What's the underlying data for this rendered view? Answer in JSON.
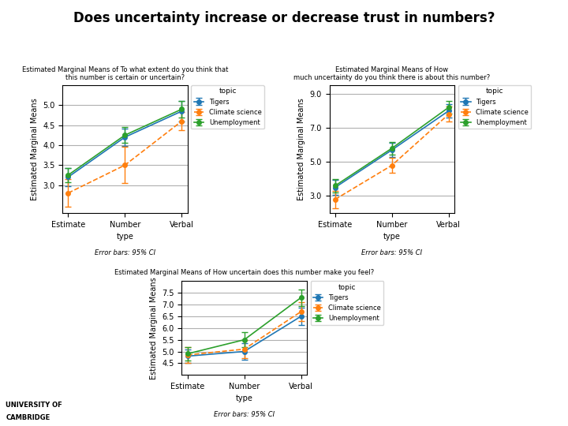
{
  "title": "Does uncertainty increase or decrease trust in numbers?",
  "annotations": [
    "UNIVERSITY OF",
    "CAMBRIDGE"
  ],
  "chart_data": [
    {
      "type": "line",
      "title": "Estimated Marginal Means of To what extent do you think that\nthis number is certain or uncertain?",
      "x_label": "type",
      "y_label": "Estimated Marginal Means",
      "categories": [
        "Estimate",
        "Number",
        "Verbal"
      ],
      "ylim": [
        2.3,
        5.5
      ],
      "yticks": [
        {
          "value": 3.0,
          "label": "3.0"
        },
        3.5,
        {
          "value": 4.0,
          "label": "4.0"
        },
        4.5,
        {
          "value": 5.0,
          "label": "5.0"
        }
      ],
      "grid": "y",
      "legend": "upper left",
      "legend_title": "topic",
      "annotations": [
        "Error bars: 95% CI"
      ],
      "series": [
        {
          "name": "Tigers",
          "values": [
            3.2,
            4.2,
            4.85
          ],
          "errors": [
            0.22,
            0.22,
            0.25
          ],
          "marker": "o",
          "line_style": "solid"
        },
        {
          "name": "Climate science",
          "values": [
            2.8,
            3.5,
            4.6
          ],
          "errors": [
            0.35,
            0.45,
            0.22
          ],
          "marker": "o",
          "line_style": "dashed"
        },
        {
          "name": "Unemployment",
          "values": [
            3.25,
            4.25,
            4.9
          ],
          "errors": [
            0.18,
            0.2,
            0.2
          ],
          "marker": "o",
          "line_style": "solid"
        }
      ]
    },
    {
      "type": "line",
      "title": "Estimated Marginal Means of How\nmuch uncertainty do you think there is about this number?",
      "x_label": "type",
      "y_label": "Estimated Marginal Means",
      "categories": [
        "Estimate",
        "Number",
        "Verbal"
      ],
      "ylim": [
        2.0,
        9.5
      ],
      "yticks": [
        {
          "value": 3.0,
          "label": "3.0"
        },
        {
          "value": 5.0,
          "label": "5.0"
        },
        {
          "value": 7.0,
          "label": "7.0"
        },
        {
          "value": 9.0,
          "label": "9.0"
        }
      ],
      "grid": "y",
      "legend": "upper left",
      "legend_title": "topic",
      "annotations": [
        "Error bars: 95% CI"
      ],
      "series": [
        {
          "name": "Tigers",
          "values": [
            3.5,
            5.7,
            8.0
          ],
          "errors": [
            0.45,
            0.4,
            0.4
          ],
          "marker": "o",
          "line_style": "solid"
        },
        {
          "name": "Climate science",
          "values": [
            2.8,
            4.8,
            7.8
          ],
          "errors": [
            0.5,
            0.45,
            0.45
          ],
          "marker": "o",
          "line_style": "dashed"
        },
        {
          "name": "Unemployment",
          "values": [
            3.6,
            5.8,
            8.2
          ],
          "errors": [
            0.4,
            0.38,
            0.38
          ],
          "marker": "o",
          "line_style": "solid"
        }
      ]
    },
    {
      "type": "line",
      "title": "Estimated Marginal Means of How uncertain does this number make you feel?",
      "x_label": "type",
      "y_label": "Estimated Marginal Means",
      "categories": [
        "Estimate",
        "Number",
        "Verbal"
      ],
      "ylim": [
        4.0,
        8.0
      ],
      "yticks": [
        4.5,
        {
          "value": 5.0,
          "label": "5.0"
        },
        5.5,
        {
          "value": 6.0,
          "label": "6.0"
        },
        6.5,
        {
          "value": 7.0,
          "label": "7.0"
        },
        7.5
      ],
      "grid": "y",
      "legend": "upper left",
      "legend_title": "topic",
      "annotations": [
        "Error bars: 95% CI"
      ],
      "series": [
        {
          "name": "Tigers",
          "values": [
            4.8,
            5.0,
            6.5
          ],
          "errors": [
            0.3,
            0.35,
            0.38
          ],
          "marker": "o",
          "line_style": "solid"
        },
        {
          "name": "Climate science",
          "values": [
            4.85,
            5.1,
            6.7
          ],
          "errors": [
            0.35,
            0.4,
            0.42
          ],
          "marker": "o",
          "line_style": "dashed"
        },
        {
          "name": "Unemployment",
          "values": [
            4.9,
            5.5,
            7.3
          ],
          "errors": [
            0.28,
            0.32,
            0.35
          ],
          "marker": "o",
          "line_style": "solid"
        }
      ]
    }
  ]
}
